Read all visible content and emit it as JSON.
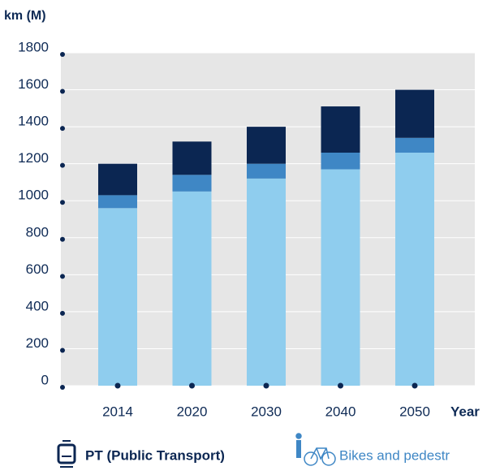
{
  "chart_data": {
    "type": "stacked_bar",
    "y_axis_label": "km (M)",
    "x_axis_label": "Year",
    "categories": [
      "2014",
      "2020",
      "2030",
      "2040",
      "2050"
    ],
    "series": [
      {
        "color": "#8fcdee",
        "values": [
          960,
          1050,
          1120,
          1170,
          1260
        ]
      },
      {
        "name": "Bikes and pedestr",
        "color": "#3f87c5",
        "values": [
          70,
          90,
          80,
          90,
          80
        ]
      },
      {
        "name": "PT (Public Transport)",
        "color": "#0b2652",
        "values": [
          170,
          180,
          200,
          250,
          260
        ]
      }
    ],
    "ylim": [
      0,
      1800
    ],
    "yticks": [
      0,
      200,
      400,
      600,
      800,
      1000,
      1200,
      1400,
      1600,
      1800
    ],
    "grid": true,
    "legend": "bottom"
  }
}
